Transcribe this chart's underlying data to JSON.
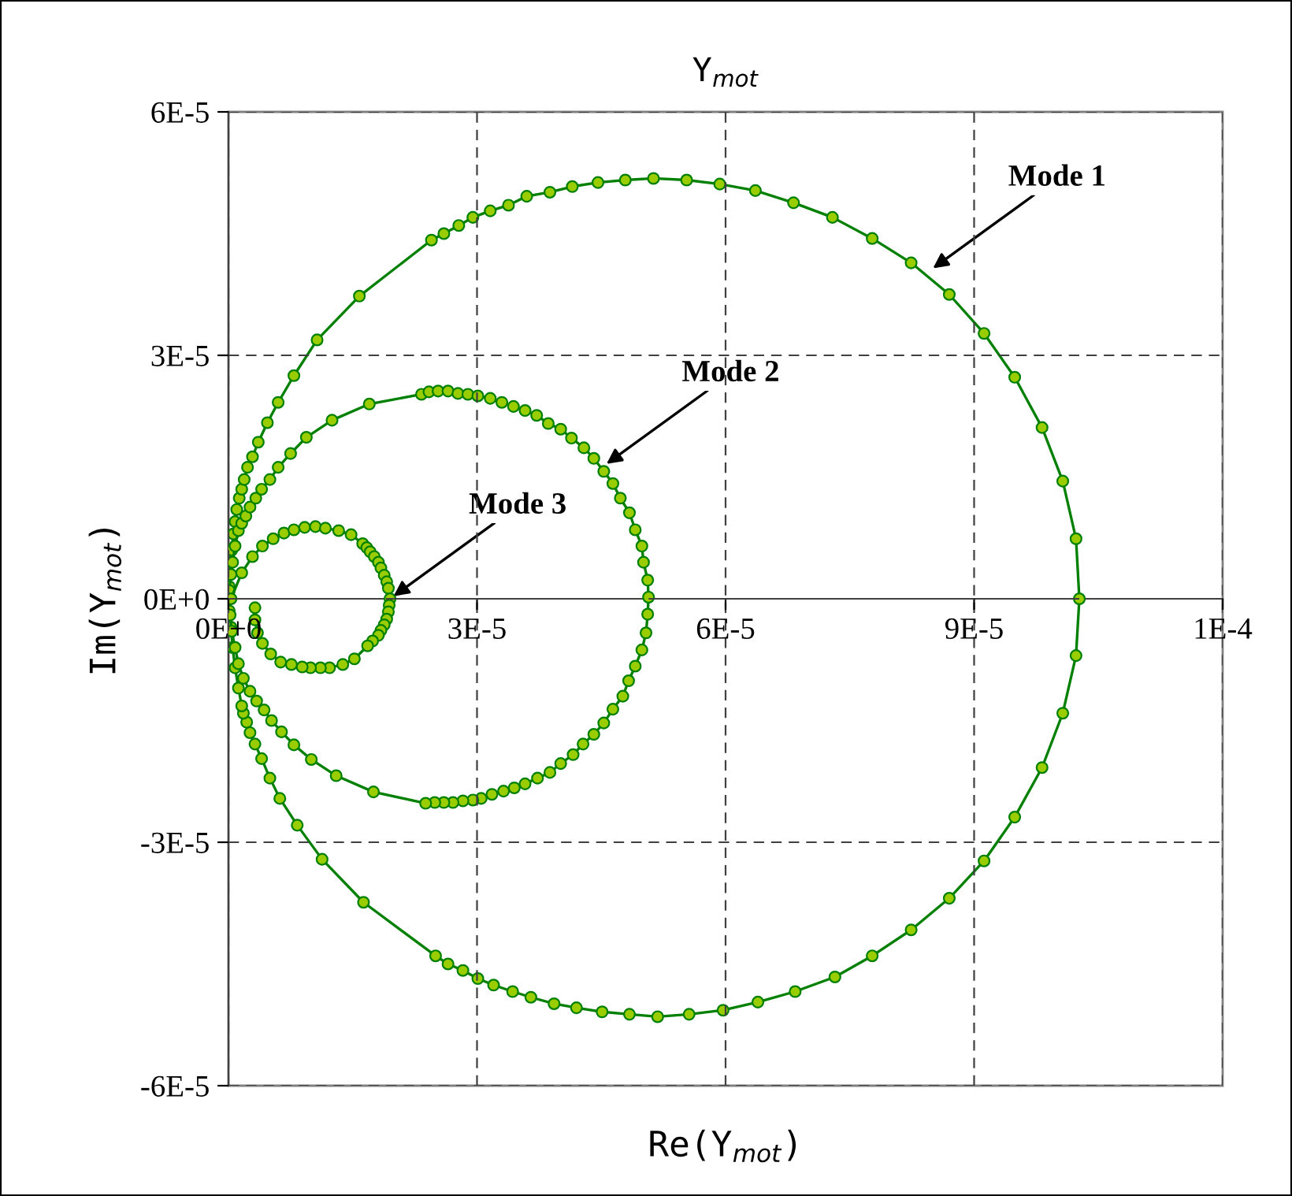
{
  "chart_data": {
    "type": "line",
    "title": "Y$_{mot}$",
    "xlabel": "Re(Y$_{mot}$)",
    "ylabel": "Im(Y$_{mot}$)",
    "xlim": [
      0,
      0.00012
    ],
    "ylim": [
      -6e-05,
      6e-05
    ],
    "xticks": [
      {
        "value": 0,
        "label": "0E+0"
      },
      {
        "value": 3e-05,
        "label": "3E-5"
      },
      {
        "value": 6e-05,
        "label": "6E-5"
      },
      {
        "value": 9e-05,
        "label": "9E-5"
      },
      {
        "value": 0.00012,
        "label": "1E-4"
      }
    ],
    "yticks": [
      {
        "value": -6e-05,
        "label": "-6E-5"
      },
      {
        "value": -3e-05,
        "label": "-3E-5"
      },
      {
        "value": 0,
        "label": "0E+0"
      },
      {
        "value": 3e-05,
        "label": "3E-5"
      },
      {
        "value": 6e-05,
        "label": "6E-5"
      }
    ],
    "grid": true,
    "legend": false,
    "marker": "circle",
    "line_style": "solid",
    "annotations": [
      {
        "text": "Mode 1",
        "x": 8.46e-05,
        "y": 4.04e-05
      },
      {
        "text": "Mode 2",
        "x": 4.52e-05,
        "y": 1.63e-05
      },
      {
        "text": "Mode 3",
        "x": 1.95e-05,
        "y": 0
      }
    ],
    "series": [
      {
        "color": "#008000",
        "x": [
          0,
          1e-07,
          2e-07,
          3e-07,
          4e-07,
          6e-07,
          8e-07,
          1e-06,
          1.3e-06,
          1.6e-06,
          1.9e-06,
          2.3e-06,
          2.9e-06,
          3.6e-06,
          4.7e-06,
          6e-06,
          7.9e-06,
          1.07e-05,
          1.58e-05,
          2.45e-05,
          2.6e-05,
          2.78e-05,
          2.95e-05,
          3.16e-05,
          3.38e-05,
          3.6e-05,
          3.88e-05,
          4.15e-05,
          4.46e-05,
          4.79e-05,
          5.13e-05,
          5.53e-05,
          5.93e-05,
          6.36e-05,
          6.82e-05,
          7.29e-05,
          7.77e-05,
          8.24e-05,
          8.7e-05,
          9.12e-05,
          9.49e-05,
          9.82e-05,
          0.0001007,
          0.0001023,
          0.0001027,
          0.0001023,
          0.0001007,
          9.82e-05,
          9.49e-05,
          9.12e-05,
          8.7e-05,
          8.24e-05,
          7.77e-05,
          7.32e-05,
          6.84e-05,
          6.39e-05,
          5.97e-05,
          5.56e-05,
          5.18e-05,
          4.84e-05,
          4.51e-05,
          4.2e-05,
          3.93e-05,
          3.65e-05,
          3.43e-05,
          3.2e-05,
          3.01e-05,
          2.83e-05,
          2.65e-05,
          2.5e-05,
          1.63e-05,
          1.13e-05,
          8.3e-06,
          6.2e-06,
          5e-06,
          4e-06,
          3.2e-06,
          2.6e-06,
          2.2e-06,
          1.8e-06,
          1.6e-06,
          1.2e-06,
          8e-07,
          5e-07,
          3e-07,
          1e-07
        ],
        "values": [
          0,
          1.5e-06,
          3e-06,
          4.5e-06,
          6e-06,
          8e-06,
          9.5e-06,
          1.1e-05,
          1.24e-05,
          1.35e-05,
          1.47e-05,
          1.62e-05,
          1.75e-05,
          1.93e-05,
          2.17e-05,
          2.42e-05,
          2.75e-05,
          3.19e-05,
          3.73e-05,
          4.42e-05,
          4.5e-05,
          4.6e-05,
          4.7e-05,
          4.78e-05,
          4.85e-05,
          4.96e-05,
          5.01e-05,
          5.08e-05,
          5.13e-05,
          5.16e-05,
          5.18e-05,
          5.16e-05,
          5.11e-05,
          5.03e-05,
          4.88e-05,
          4.7e-05,
          4.44e-05,
          4.14e-05,
          3.75e-05,
          3.27e-05,
          2.73e-05,
          2.11e-05,
          1.45e-05,
          7.4e-06,
          0,
          -7e-06,
          -1.41e-05,
          -2.08e-05,
          -2.69e-05,
          -3.23e-05,
          -3.69e-05,
          -4.08e-05,
          -4.4e-05,
          -4.66e-05,
          -4.84e-05,
          -4.97e-05,
          -5.07e-05,
          -5.12e-05,
          -5.15e-05,
          -5.12e-05,
          -5.09e-05,
          -5.04e-05,
          -4.99e-05,
          -4.91e-05,
          -4.84e-05,
          -4.76e-05,
          -4.68e-05,
          -4.58e-05,
          -4.5e-05,
          -4.4e-05,
          -3.74e-05,
          -3.21e-05,
          -2.79e-05,
          -2.46e-05,
          -2.21e-05,
          -1.97e-05,
          -1.79e-05,
          -1.65e-05,
          -1.52e-05,
          -1.41e-05,
          -1.32e-05,
          -1.1e-05,
          -8.5e-06,
          -6e-06,
          -3.5e-06,
          -1.5e-06
        ]
      },
      {
        "color": "#008000",
        "x": [
          1e-07,
          3e-07,
          5e-07,
          8e-07,
          1.2e-06,
          1.6e-06,
          2.1e-06,
          2.6e-06,
          3.3e-06,
          4e-06,
          5e-06,
          6e-06,
          7.5e-06,
          9.4e-06,
          1.25e-05,
          1.7e-05,
          2.33e-05,
          2.42e-05,
          2.53e-05,
          2.65e-05,
          2.77e-05,
          2.89e-05,
          3.01e-05,
          3.16e-05,
          3.3e-05,
          3.44e-05,
          3.58e-05,
          3.72e-05,
          3.86e-05,
          4.01e-05,
          4.14e-05,
          4.29e-05,
          4.41e-05,
          4.53e-05,
          4.64e-05,
          4.73e-05,
          4.84e-05,
          4.91e-05,
          4.99e-05,
          5.01e-05,
          5.06e-05,
          5.07e-05,
          5.06e-05,
          5.04e-05,
          4.99e-05,
          4.91e-05,
          4.83e-05,
          4.76e-05,
          4.64e-05,
          4.53e-05,
          4.41e-05,
          4.28e-05,
          4.16e-05,
          4.01e-05,
          3.88e-05,
          3.73e-05,
          3.58e-05,
          3.45e-05,
          3.32e-05,
          3.18e-05,
          3.05e-05,
          2.95e-05,
          2.83e-05,
          2.71e-05,
          2.6e-05,
          2.49e-05,
          2.38e-05,
          1.75e-05,
          1.3e-05,
          1e-05,
          7.9e-06,
          6.4e-06,
          5.2e-06,
          4.3e-06,
          3.4e-06,
          2.6e-06,
          1.8e-06,
          1.2e-06,
          8e-07,
          4e-07,
          2e-07
        ],
        "values": [
          1e-06,
          3e-06,
          4.5e-06,
          6.5e-06,
          8.4e-06,
          9.3e-06,
          1.02e-05,
          1.13e-05,
          1.24e-05,
          1.35e-05,
          1.47e-05,
          1.62e-05,
          1.79e-05,
          1.99e-05,
          2.2e-05,
          2.4e-05,
          2.52e-05,
          2.55e-05,
          2.56e-05,
          2.56e-05,
          2.53e-05,
          2.52e-05,
          2.5e-05,
          2.47e-05,
          2.42e-05,
          2.37e-05,
          2.32e-05,
          2.26e-05,
          2.16e-05,
          2.09e-05,
          1.98e-05,
          1.86e-05,
          1.73e-05,
          1.57e-05,
          1.42e-05,
          1.24e-05,
          1.06e-05,
          8.5e-06,
          6.5e-06,
          4.5e-06,
          2.3e-06,
          2e-07,
          -1.9e-06,
          -4.2e-06,
          -6.3e-06,
          -8.3e-06,
          -1.01e-05,
          -1.2e-05,
          -1.36e-05,
          -1.53e-05,
          -1.67e-05,
          -1.79e-05,
          -1.92e-05,
          -2.03e-05,
          -2.14e-05,
          -2.21e-05,
          -2.28e-05,
          -2.33e-05,
          -2.37e-05,
          -2.41e-05,
          -2.46e-05,
          -2.48e-05,
          -2.49e-05,
          -2.51e-05,
          -2.51e-05,
          -2.51e-05,
          -2.52e-05,
          -2.38e-05,
          -2.18e-05,
          -1.98e-05,
          -1.8e-05,
          -1.64e-05,
          -1.5e-05,
          -1.37e-05,
          -1.26e-05,
          -1.14e-05,
          -9.8e-06,
          -8e-06,
          -6e-06,
          -4e-06,
          -2e-06
        ]
      },
      {
        "color": "#008000",
        "x": [
          3e-07,
          1.6e-06,
          2.9e-06,
          4.1e-06,
          5.4e-06,
          6.7e-06,
          7.9e-06,
          9.2e-06,
          1.05e-05,
          1.17e-05,
          1.33e-05,
          1.48e-05,
          1.62e-05,
          1.67e-05,
          1.71e-05,
          1.76e-05,
          1.81e-05,
          1.84e-05,
          1.88e-05,
          1.91e-05,
          1.93e-05,
          1.95e-05,
          1.94e-05,
          1.93e-05,
          1.91e-05,
          1.88e-05,
          1.84e-05,
          1.81e-05,
          1.74e-05,
          1.68e-05,
          1.52e-05,
          1.38e-05,
          1.22e-05,
          1.11e-05,
          9.9e-06,
          8.9e-06,
          7.6e-06,
          6.3e-06,
          5.1e-06,
          4.1e-06,
          3.5e-06,
          3.2e-06,
          3.2e-06
        ],
        "values": [
          0,
          3.2e-06,
          5.2e-06,
          6.5e-06,
          7.4e-06,
          8.1e-06,
          8.5e-06,
          8.8e-06,
          8.9e-06,
          8.7e-06,
          8.4e-06,
          7.9e-06,
          6.8e-06,
          6.3e-06,
          5.8e-06,
          5.2e-06,
          4.5e-06,
          3.8e-06,
          2.9e-06,
          2.1e-06,
          1.3e-06,
          0,
          -8e-07,
          -1.6e-06,
          -2.5e-06,
          -3.2e-06,
          -3.9e-06,
          -4.5e-06,
          -5.2e-06,
          -5.8e-06,
          -7.4e-06,
          -8.1e-06,
          -8.5e-06,
          -8.5e-06,
          -8.5e-06,
          -8.4e-06,
          -8.1e-06,
          -7.8e-06,
          -6.8e-06,
          -5.5e-06,
          -4.2e-06,
          -2.6e-06,
          -1.1e-06
        ]
      }
    ]
  }
}
